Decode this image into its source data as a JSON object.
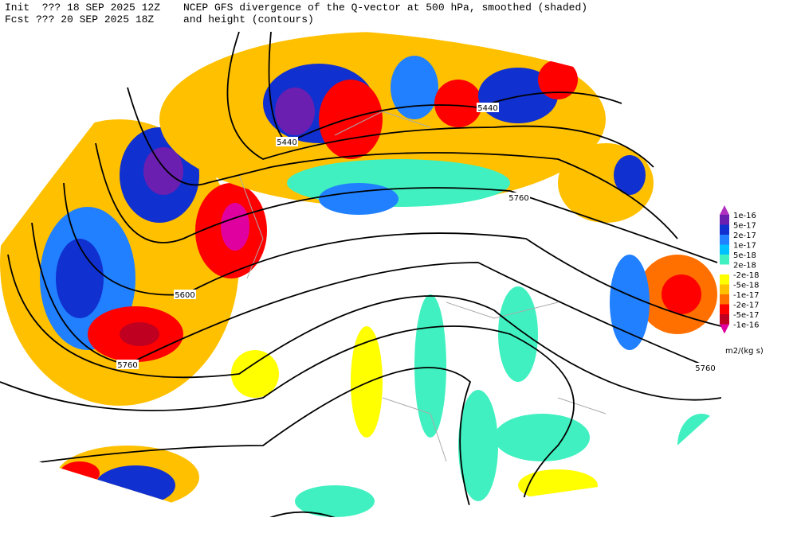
{
  "header": {
    "init": "Init  ??? 18 SEP 2025 12Z",
    "fcst": "Fcst ??? 20 SEP 2025 18Z",
    "title": "NCEP GFS divergence of the Q-vector at 500 hPa, smoothed (shaded)",
    "subtitle": "and height (contours)"
  },
  "map": {
    "contour_labels": [
      "5440",
      "5440",
      "5600",
      "5760",
      "5760",
      "5760"
    ]
  },
  "colorbar": {
    "colors": [
      "#b030c0",
      "#6a1fb0",
      "#1030d0",
      "#2080ff",
      "#00c0ff",
      "#40f0c0",
      "#ffffff",
      "#ffff00",
      "#ffc000",
      "#ff7000",
      "#ff0000",
      "#c00020",
      "#e000a0"
    ],
    "labels": [
      "1e-16",
      "5e-17",
      "2e-17",
      "1e-17",
      "5e-18",
      "2e-18",
      "-2e-18",
      "-5e-18",
      "-1e-17",
      "-2e-17",
      "-5e-17",
      "-1e-16"
    ],
    "units": "m2/(kg s)"
  }
}
